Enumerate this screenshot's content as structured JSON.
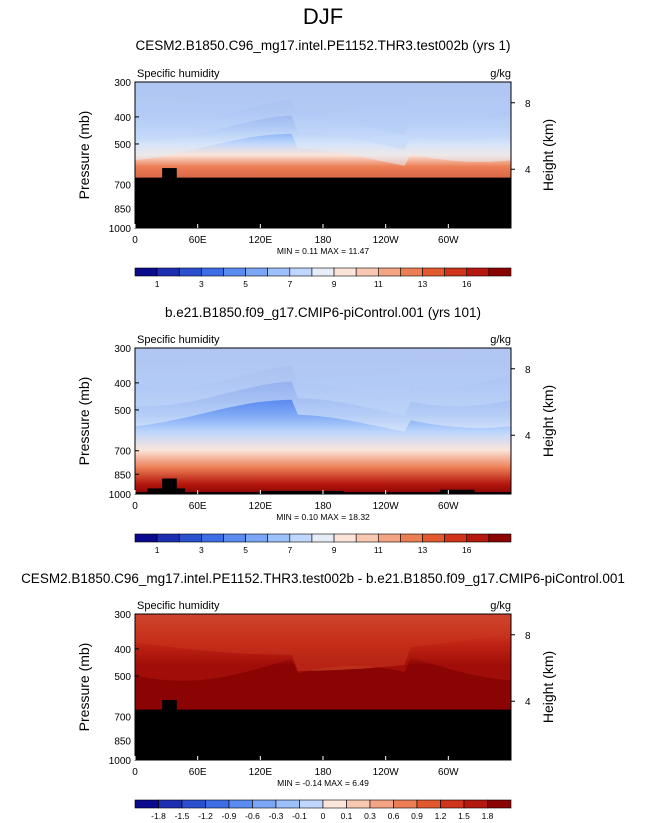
{
  "title": "DJF",
  "chart_data": [
    {
      "type": "heatmap",
      "title": "CESM2.B1850.C96_mg17.intel.PE1152.THR3.test002b (yrs 1)",
      "left_label": "Specific humidity",
      "right_label": "g/kg",
      "ylabel": "Pressure (mb)",
      "ylabel_right": "Height (km)",
      "xticks": [
        "0",
        "60E",
        "120E",
        "180",
        "120W",
        "60W"
      ],
      "xtick_lon": [
        0,
        60,
        120,
        180,
        240,
        300
      ],
      "xlim": [
        0,
        360
      ],
      "yticks": [
        "300",
        "400",
        "500",
        "700",
        "850",
        "1000"
      ],
      "ytick_vals": [
        300,
        400,
        500,
        700,
        850,
        1000
      ],
      "ylim": [
        300,
        1000
      ],
      "y_log": true,
      "height_ticks": [
        "8",
        "4"
      ],
      "stats": "MIN =  0.11  MAX = 11.47",
      "min": 0.11,
      "max": 11.47,
      "mask_level": 660,
      "colorbar": {
        "labels": [
          "1",
          "3",
          "5",
          "7",
          "9",
          "11",
          "13",
          "16"
        ],
        "colors": [
          "#0a0a8c",
          "#1c2fb0",
          "#2a50d0",
          "#3d6ee6",
          "#5a8bf0",
          "#7aa6f5",
          "#9cc0fa",
          "#bfd7fc",
          "#e4edf8",
          "#fbe4da",
          "#f8c7b2",
          "#f3a483",
          "#ec7e55",
          "#e2582f",
          "#d0341b",
          "#b5180f",
          "#8a0404"
        ]
      }
    },
    {
      "type": "heatmap",
      "title": "b.e21.B1850.f09_g17.CMIP6-piControl.001 (yrs 101)",
      "left_label": "Specific humidity",
      "right_label": "g/kg",
      "ylabel": "Pressure (mb)",
      "ylabel_right": "Height (km)",
      "xticks": [
        "0",
        "60E",
        "120E",
        "180",
        "120W",
        "60W"
      ],
      "xtick_lon": [
        0,
        60,
        120,
        180,
        240,
        300
      ],
      "xlim": [
        0,
        360
      ],
      "yticks": [
        "300",
        "400",
        "500",
        "700",
        "850",
        "1000"
      ],
      "ytick_vals": [
        300,
        400,
        500,
        700,
        850,
        1000
      ],
      "ylim": [
        300,
        1000
      ],
      "y_log": true,
      "height_ticks": [
        "8",
        "4"
      ],
      "stats": "MIN =  0.10  MAX = 18.32",
      "min": 0.1,
      "max": 18.32,
      "mask_level": 985,
      "colorbar": {
        "labels": [
          "1",
          "3",
          "5",
          "7",
          "9",
          "11",
          "13",
          "16"
        ],
        "colors": [
          "#0a0a8c",
          "#1c2fb0",
          "#2a50d0",
          "#3d6ee6",
          "#5a8bf0",
          "#7aa6f5",
          "#9cc0fa",
          "#bfd7fc",
          "#e4edf8",
          "#fbe4da",
          "#f8c7b2",
          "#f3a483",
          "#ec7e55",
          "#e2582f",
          "#d0341b",
          "#b5180f",
          "#8a0404"
        ]
      }
    },
    {
      "type": "heatmap",
      "title": "CESM2.B1850.C96_mg17.intel.PE1152.THR3.test002b - b.e21.B1850.f09_g17.CMIP6-piControl.001",
      "left_label": "Specific humidity",
      "right_label": "g/kg",
      "ylabel": "Pressure (mb)",
      "ylabel_right": "Height (km)",
      "xticks": [
        "0",
        "60E",
        "120E",
        "180",
        "120W",
        "60W"
      ],
      "xtick_lon": [
        0,
        60,
        120,
        180,
        240,
        300
      ],
      "xlim": [
        0,
        360
      ],
      "yticks": [
        "300",
        "400",
        "500",
        "700",
        "850",
        "1000"
      ],
      "ytick_vals": [
        300,
        400,
        500,
        700,
        850,
        1000
      ],
      "ylim": [
        300,
        1000
      ],
      "y_log": true,
      "height_ticks": [
        "8",
        "4"
      ],
      "stats": "MIN = -0.14  MAX =  6.49",
      "min": -0.14,
      "max": 6.49,
      "mask_level": 660,
      "colorbar": {
        "labels": [
          "-1.8",
          "-1.5",
          "-1.2",
          "-0.9",
          "-0.6",
          "-0.3",
          "-0.1",
          "0",
          "0.1",
          "0.3",
          "0.6",
          "0.9",
          "1.2",
          "1.5",
          "1.8"
        ],
        "colors": [
          "#0a0a8c",
          "#1c2fb0",
          "#2a50d0",
          "#3d6ee6",
          "#5a8bf0",
          "#7aa6f5",
          "#9cc0fa",
          "#bfd7fc",
          "#fbe4da",
          "#f8c7b2",
          "#f3a483",
          "#ec7e55",
          "#e2582f",
          "#d0341b",
          "#b5180f",
          "#8a0404"
        ]
      }
    }
  ]
}
